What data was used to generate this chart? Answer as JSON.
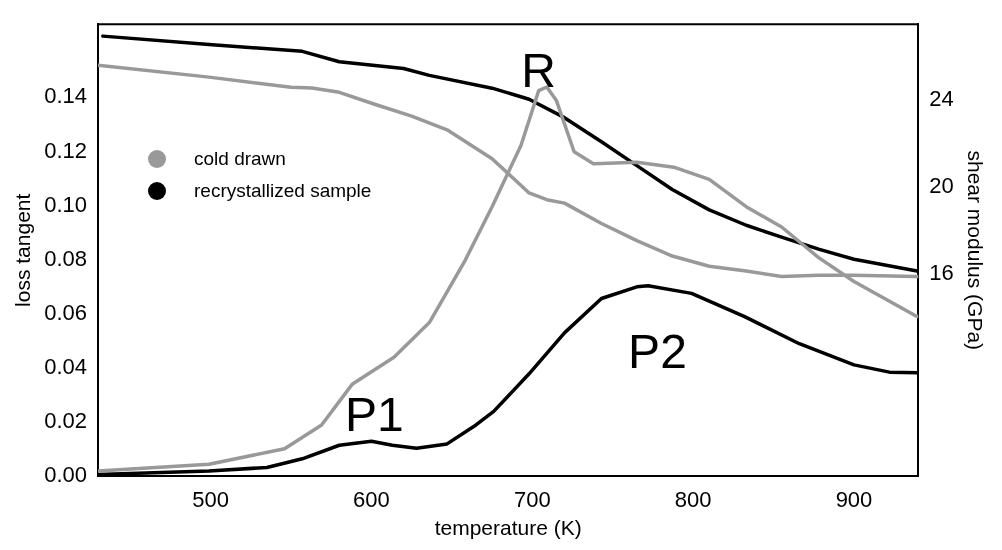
{
  "chart_data": {
    "type": "line",
    "xlabel": "temperature (K)",
    "ylabel": "loss tangent",
    "y2label": "shear modulus (GPa)",
    "xlim": [
      430,
      940
    ],
    "xticks": [
      500,
      600,
      700,
      800,
      900
    ],
    "ylim": [
      0,
      0.167
    ],
    "yticks": [
      {
        "value": 0,
        "label": "0.00"
      },
      {
        "value": 0.02,
        "label": "0.02"
      },
      {
        "value": 0.04,
        "label": "0.04"
      },
      {
        "value": 0.06,
        "label": "0.06"
      },
      {
        "value": 0.08,
        "label": "0.08"
      },
      {
        "value": 0.1,
        "label": "0.10"
      },
      {
        "value": 0.12,
        "label": "0.12"
      },
      {
        "value": 0.14,
        "label": "0.14"
      }
    ],
    "y2lim": [
      6.65,
      27.5
    ],
    "y2ticks": [
      16,
      20,
      24
    ],
    "grid": false,
    "legend": "top left",
    "marker": "none",
    "line_style": "solid",
    "annotations": [
      "R",
      "P1",
      "P2"
    ],
    "series": [
      {
        "name": "cold drawn",
        "color": "#999999",
        "x": [
          430,
          499,
          546,
          569,
          588,
          614,
          636,
          658,
          675,
          693,
          704,
          709,
          715,
          726,
          738,
          765,
          788,
          810,
          833,
          855,
          878,
          900,
          938,
          940
        ],
        "values": [
          0.002,
          0.0045,
          0.0102,
          0.019,
          0.034,
          0.044,
          0.0568,
          0.0795,
          0.0996,
          0.1223,
          0.1425,
          0.1438,
          0.1388,
          0.1199,
          0.1155,
          0.116,
          0.1142,
          0.1097,
          0.0996,
          0.0921,
          0.0808,
          0.072,
          0.0594,
          0.059
        ]
      },
      {
        "name": "recrystallized sample",
        "color": "#000000",
        "x": [
          430,
          499,
          535,
          557,
          580,
          600,
          613,
          628,
          647,
          665,
          676,
          698,
          720,
          743,
          765,
          772,
          799,
          832,
          866,
          900,
          922,
          940
        ],
        "values": [
          0.0007,
          0.002,
          0.0033,
          0.0065,
          0.0115,
          0.013,
          0.0115,
          0.0104,
          0.012,
          0.019,
          0.024,
          0.0379,
          0.053,
          0.0657,
          0.07,
          0.0704,
          0.0676,
          0.059,
          0.049,
          0.0412,
          0.0385,
          0.0383
        ]
      },
      {
        "color": "#999999",
        "axis": "y2",
        "x": [
          430,
          499,
          550,
          563,
          580,
          602,
          625,
          647,
          675,
          698,
          709,
          720,
          743,
          765,
          787,
          810,
          833,
          855,
          878,
          900,
          938,
          940
        ],
        "values": [
          25.61,
          25.06,
          24.59,
          24.56,
          24.36,
          23.81,
          23.26,
          22.63,
          21.3,
          19.72,
          19.41,
          19.25,
          18.31,
          17.52,
          16.81,
          16.34,
          16.12,
          15.87,
          15.92,
          15.92,
          15.87,
          15.87
        ]
      },
      {
        "color": "#000000",
        "axis": "y2",
        "x": [
          433,
          499,
          557,
          580,
          620,
          636,
          675,
          698,
          720,
          743,
          765,
          787,
          810,
          833,
          855,
          878,
          900,
          940
        ],
        "values": [
          26.95,
          26.56,
          26.25,
          25.77,
          25.46,
          25.14,
          24.55,
          24.04,
          23.19,
          22.08,
          20.98,
          19.88,
          18.94,
          18.23,
          17.68,
          17.13,
          16.66,
          16.11
        ]
      }
    ]
  }
}
